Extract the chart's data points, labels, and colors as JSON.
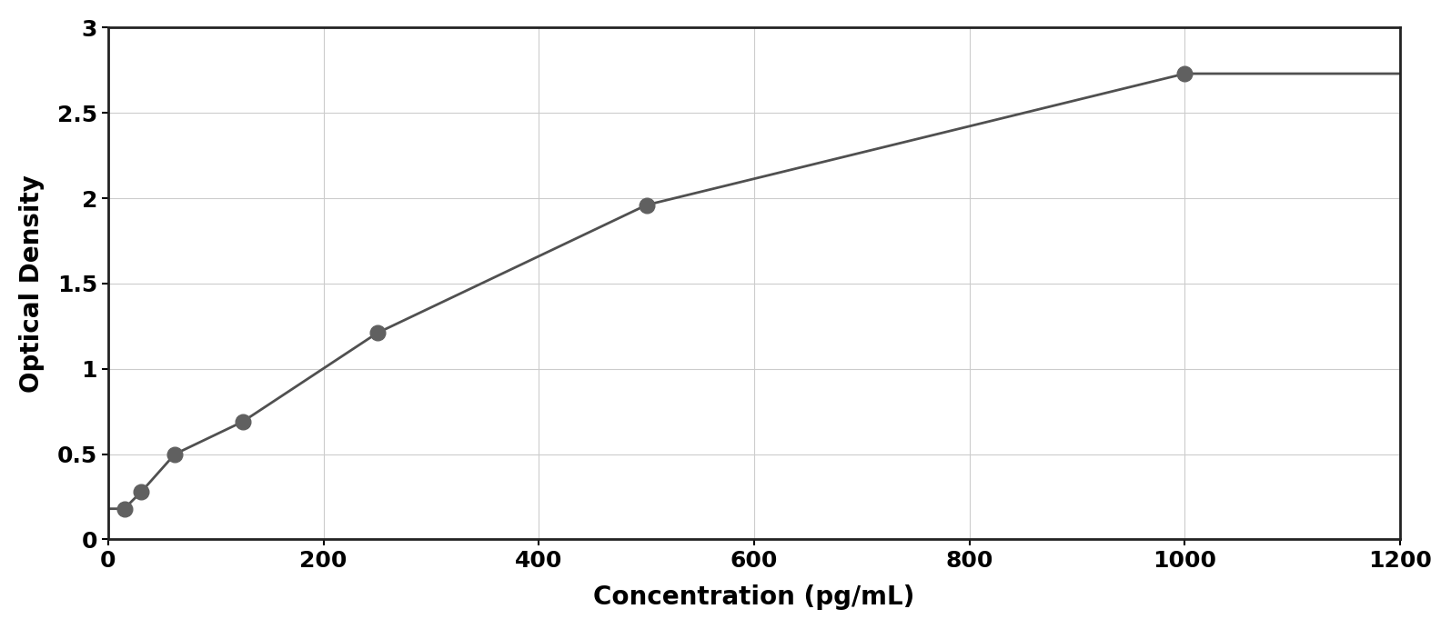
{
  "x_data": [
    15,
    31,
    62,
    125,
    250,
    500,
    1000
  ],
  "y_data": [
    0.18,
    0.28,
    0.5,
    0.69,
    1.21,
    1.96,
    2.73
  ],
  "xlabel": "Concentration (pg/mL)",
  "ylabel": "Optical Density",
  "xlim": [
    0,
    1200
  ],
  "ylim": [
    0,
    3
  ],
  "xticks": [
    0,
    200,
    400,
    600,
    800,
    1000,
    1200
  ],
  "yticks": [
    0,
    0.5,
    1.0,
    1.5,
    2.0,
    2.5,
    3.0
  ],
  "marker_color": "#606060",
  "line_color": "#505050",
  "background_color": "#ffffff",
  "grid_color": "#cccccc",
  "marker_size": 12,
  "line_width": 2.0,
  "xlabel_fontsize": 20,
  "ylabel_fontsize": 20,
  "tick_fontsize": 18,
  "border_color": "#222222",
  "outer_border_color": "#aaaaaa"
}
